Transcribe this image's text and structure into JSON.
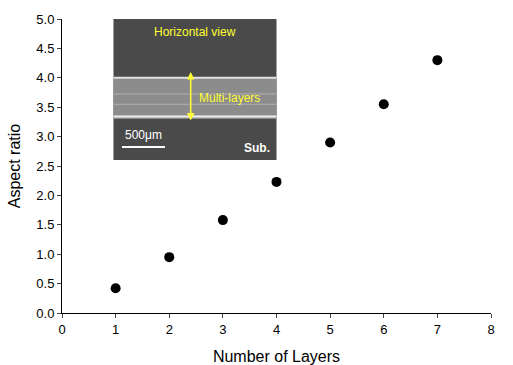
{
  "chart_data": {
    "type": "scatter",
    "x": [
      1,
      2,
      3,
      4,
      5,
      6,
      7
    ],
    "values": [
      0.42,
      0.95,
      1.58,
      2.23,
      2.9,
      3.55,
      4.3
    ],
    "color": "#000000",
    "marker": "circle",
    "xlabel": "Number of Layers",
    "ylabel": "Aspect ratio",
    "xlim": [
      0,
      8
    ],
    "xticks": [
      0,
      1,
      2,
      3,
      4,
      5,
      6,
      7,
      8
    ],
    "ylim": [
      0,
      5
    ],
    "yticks": [
      {
        "value": 0,
        "label": "0.0"
      },
      0.5,
      {
        "value": 1,
        "label": "1.0"
      },
      1.5,
      {
        "value": 2,
        "label": "2.0"
      },
      2.5,
      {
        "value": 3,
        "label": "3.0"
      },
      3.5,
      {
        "value": 4,
        "label": "4.0"
      },
      4.5,
      {
        "value": 5,
        "label": "5.0"
      }
    ],
    "grid": false,
    "annotations": [
      "Horizontal view",
      "Multi-layers",
      "500μm",
      "Sub."
    ]
  }
}
